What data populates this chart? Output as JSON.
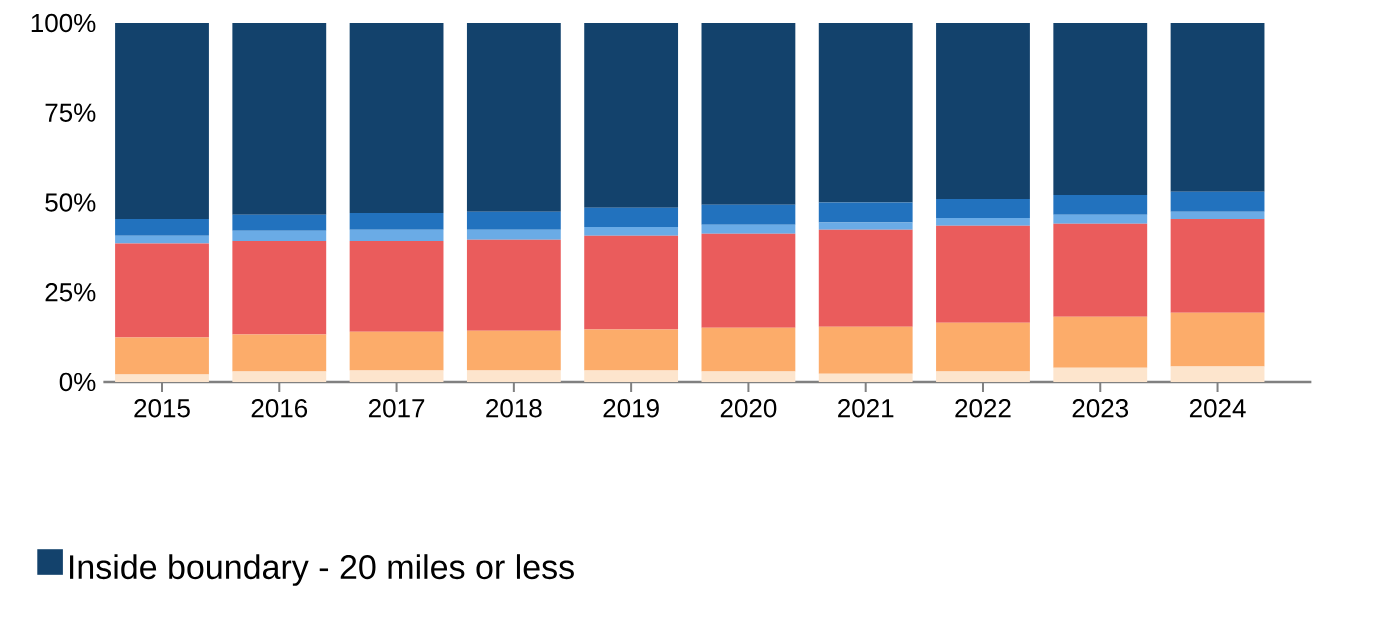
{
  "chart_data": {
    "type": "bar",
    "stacked": true,
    "categories": [
      "2015",
      "2016",
      "2017",
      "2018",
      "2019",
      "2020",
      "2021",
      "2022",
      "2023",
      "2024"
    ],
    "series": [
      {
        "color": "#fde5cd",
        "values": [
          2.1,
          2.9,
          3.2,
          3.2,
          3.2,
          2.9,
          2.3,
          2.9,
          4.0,
          4.3
        ]
      },
      {
        "color": "#fcac6a",
        "values": [
          10.3,
          10.3,
          10.8,
          11.1,
          11.4,
          12.2,
          13.1,
          13.6,
          14.2,
          15.0
        ]
      },
      {
        "color": "#ea5c5c",
        "values": [
          26.2,
          26.1,
          25.3,
          25.3,
          26.1,
          26.2,
          27.0,
          27.0,
          25.9,
          26.1
        ]
      },
      {
        "color": "#6aabe6",
        "values": [
          2.1,
          2.8,
          3.1,
          2.8,
          2.5,
          2.5,
          2.0,
          2.2,
          2.5,
          2.0
        ]
      },
      {
        "color": "#2272be",
        "values": [
          4.7,
          4.5,
          4.7,
          5.0,
          5.3,
          5.6,
          5.6,
          5.3,
          5.5,
          5.6
        ]
      },
      {
        "name": "Inside boundary - 20 miles or less",
        "color": "#13426c",
        "values": [
          54.6,
          53.4,
          52.9,
          52.6,
          51.5,
          50.6,
          50.0,
          49.0,
          47.9,
          47.0
        ]
      }
    ],
    "ylim": [
      0,
      100
    ],
    "yticks": [
      {
        "value": 0,
        "label": "0%"
      },
      {
        "value": 25,
        "label": "25%"
      },
      {
        "value": 50,
        "label": "50%"
      },
      {
        "value": 75,
        "label": "75%"
      },
      {
        "value": 100,
        "label": "100%"
      }
    ],
    "grid": false,
    "legend": "bottom left"
  }
}
